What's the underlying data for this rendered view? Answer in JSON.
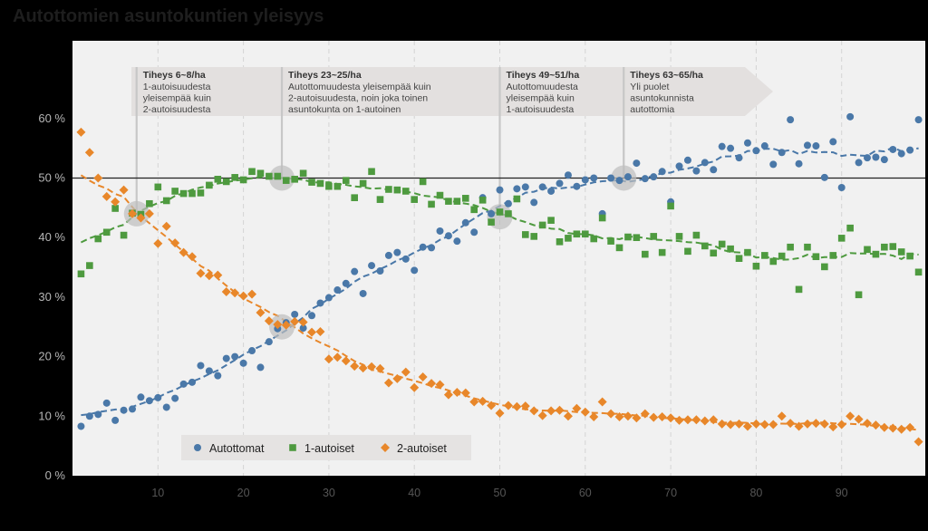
{
  "chart_data": {
    "type": "scatter",
    "title": "Autottomien asuntokuntien yleisyys",
    "xlim": [
      0,
      100
    ],
    "ylim": [
      0,
      70
    ],
    "x_ticks": [
      10,
      20,
      30,
      40,
      50,
      60,
      70,
      80,
      90
    ],
    "y_ticks": [
      {
        "value": 0,
        "label": "0 %"
      },
      {
        "value": 10,
        "label": "10 %"
      },
      {
        "value": 20,
        "label": "20 %"
      },
      {
        "value": 30,
        "label": "30 %"
      },
      {
        "value": 40,
        "label": "40 %"
      },
      {
        "value": 50,
        "label": "50 %"
      },
      {
        "value": 60,
        "label": "60 %"
      }
    ],
    "reference_line": 50,
    "legend_position": "bottom-left",
    "annotations": [
      {
        "x": 7.5,
        "title": "Tiheys 6~8/ha",
        "lines": [
          "1-autoisuudesta",
          "yleisempää kuin",
          "2-autoisuudesta"
        ]
      },
      {
        "x": 24.5,
        "title": "Tiheys 23~25/ha",
        "lines": [
          "Autottomuudesta yleisempää kuin",
          "2-autoisuudesta, noin joka toinen",
          "asuntokunta on 1-autoinen"
        ]
      },
      {
        "x": 50,
        "title": "Tiheys 49~51/ha",
        "lines": [
          "Autottomuudesta",
          "yleisempää kuin",
          "1-autoisuudesta"
        ]
      },
      {
        "x": 64.5,
        "title": "Tiheys 63~65/ha",
        "lines": [
          "Yli puolet",
          "asuntokunnista",
          "autottomia"
        ]
      }
    ],
    "highlights": [
      {
        "x": 7.5,
        "y": 44
      },
      {
        "x": 24.5,
        "y": 50
      },
      {
        "x": 24.5,
        "y": 25
      },
      {
        "x": 50,
        "y": 43.5
      },
      {
        "x": 64.5,
        "y": 50
      }
    ],
    "series": [
      {
        "name": "Autottomat",
        "marker": "circle",
        "color": "#4a78a8",
        "x": [
          1,
          2,
          3,
          4,
          5,
          6,
          7,
          8,
          9,
          10,
          11,
          12,
          13,
          14,
          15,
          16,
          17,
          18,
          19,
          20,
          21,
          22,
          23,
          24,
          25,
          26,
          27,
          28,
          29,
          30,
          31,
          32,
          33,
          34,
          35,
          36,
          37,
          38,
          39,
          40,
          41,
          42,
          43,
          44,
          45,
          46,
          47,
          48,
          49,
          50,
          51,
          52,
          53,
          54,
          55,
          56,
          57,
          58,
          59,
          60,
          61,
          62,
          63,
          64,
          65,
          66,
          67,
          68,
          69,
          70,
          71,
          72,
          73,
          74,
          75,
          76,
          77,
          78,
          79,
          80,
          81,
          82,
          83,
          84,
          85,
          86,
          87,
          88,
          89,
          90,
          91,
          92,
          93,
          94,
          95,
          96,
          97,
          98,
          99
        ],
        "y": [
          8.3,
          10.0,
          10.3,
          12.2,
          9.3,
          11.0,
          11.2,
          13.2,
          12.6,
          13.1,
          11.5,
          13.0,
          15.4,
          15.7,
          18.5,
          17.6,
          16.8,
          19.7,
          20.0,
          18.9,
          21.0,
          18.2,
          22.5,
          24.7,
          25.7,
          27.1,
          24.8,
          26.9,
          29.0,
          29.9,
          31.2,
          32.3,
          34.3,
          30.6,
          35.3,
          34.4,
          37.0,
          37.5,
          36.4,
          34.5,
          38.4,
          38.3,
          41.1,
          40.3,
          39.4,
          42.5,
          40.9,
          46.7,
          44.0,
          48.0,
          45.7,
          48.2,
          48.5,
          45.9,
          48.5,
          47.8,
          49.1,
          50.5,
          48.6,
          49.7,
          50.0,
          44.0,
          50.0,
          49.6,
          50.2,
          52.5,
          49.9,
          50.2,
          51.1,
          46.0,
          52.0,
          53.0,
          51.2,
          52.6,
          51.4,
          55.3,
          55.0,
          53.4,
          55.9,
          54.6,
          55.4,
          52.3,
          54.3,
          59.8,
          52.4,
          55.5,
          55.4,
          50.1,
          56.1,
          48.4,
          60.3,
          52.6,
          53.4,
          53.5,
          53.1,
          54.8,
          54.1,
          54.7,
          59.8
        ]
      },
      {
        "name": "1-autoiset",
        "marker": "square",
        "color": "#4e9a3f",
        "x": [
          1,
          2,
          3,
          4,
          5,
          6,
          7,
          8,
          9,
          10,
          11,
          12,
          13,
          14,
          15,
          16,
          17,
          18,
          19,
          20,
          21,
          22,
          23,
          24,
          25,
          26,
          27,
          28,
          29,
          30,
          31,
          32,
          33,
          34,
          35,
          36,
          37,
          38,
          39,
          40,
          41,
          42,
          43,
          44,
          45,
          46,
          47,
          48,
          49,
          50,
          51,
          52,
          53,
          54,
          55,
          56,
          57,
          58,
          59,
          60,
          61,
          62,
          63,
          64,
          65,
          66,
          67,
          68,
          69,
          70,
          71,
          72,
          73,
          74,
          75,
          76,
          77,
          78,
          79,
          80,
          81,
          82,
          83,
          84,
          85,
          86,
          87,
          88,
          89,
          90,
          91,
          92,
          93,
          94,
          95,
          96,
          97,
          98,
          99
        ],
        "y": [
          33.9,
          35.3,
          39.8,
          40.9,
          44.9,
          40.4,
          44.1,
          43.9,
          45.7,
          48.5,
          46.2,
          47.8,
          47.4,
          47.4,
          47.5,
          48.8,
          49.8,
          49.4,
          50.1,
          49.7,
          51.1,
          50.8,
          50.3,
          50.3,
          49.6,
          49.8,
          50.8,
          49.3,
          49.1,
          48.6,
          48.6,
          49.6,
          46.7,
          49.1,
          51.1,
          46.4,
          48.1,
          48.0,
          47.8,
          46.4,
          49.4,
          45.6,
          47.1,
          46.1,
          46.1,
          46.6,
          44.7,
          46.3,
          42.6,
          44.3,
          44.0,
          46.5,
          40.5,
          40.2,
          42.1,
          42.9,
          39.3,
          39.9,
          40.6,
          40.6,
          39.8,
          43.3,
          39.4,
          38.3,
          40.1,
          40.0,
          37.2,
          40.2,
          37.5,
          45.3,
          40.2,
          37.7,
          40.4,
          38.6,
          37.4,
          38.9,
          38.1,
          36.5,
          37.5,
          35.2,
          37.0,
          36.0,
          36.9,
          38.4,
          31.3,
          38.4,
          36.8,
          35.1,
          37.0,
          39.9,
          41.6,
          30.4,
          38.0,
          37.2,
          38.4,
          38.5,
          37.6,
          36.9,
          34.2
        ]
      },
      {
        "name": "2-autoiset",
        "marker": "diamond",
        "color": "#e8872a",
        "x": [
          1,
          2,
          3,
          4,
          5,
          6,
          7,
          8,
          9,
          10,
          11,
          12,
          13,
          14,
          15,
          16,
          17,
          18,
          19,
          20,
          21,
          22,
          23,
          24,
          25,
          26,
          27,
          28,
          29,
          30,
          31,
          32,
          33,
          34,
          35,
          36,
          37,
          38,
          39,
          40,
          41,
          42,
          43,
          44,
          45,
          46,
          47,
          48,
          49,
          50,
          51,
          52,
          53,
          54,
          55,
          56,
          57,
          58,
          59,
          60,
          61,
          62,
          63,
          64,
          65,
          66,
          67,
          68,
          69,
          70,
          71,
          72,
          73,
          74,
          75,
          76,
          77,
          78,
          79,
          80,
          81,
          82,
          83,
          84,
          85,
          86,
          87,
          88,
          89,
          90,
          91,
          92,
          93,
          94,
          95,
          96,
          97,
          98,
          99
        ],
        "y": [
          57.7,
          54.3,
          50.0,
          46.9,
          46.0,
          48.0,
          44.0,
          43.3,
          44.0,
          39.0,
          41.9,
          39.1,
          37.5,
          36.8,
          34.0,
          33.6,
          33.7,
          30.9,
          30.7,
          30.2,
          30.5,
          27.4,
          26.0,
          25.4,
          25.3,
          25.9,
          25.8,
          24.1,
          24.2,
          19.6,
          19.9,
          19.3,
          18.4,
          18.1,
          18.3,
          18.0,
          15.6,
          16.3,
          17.4,
          14.8,
          16.6,
          15.5,
          15.3,
          13.6,
          14.0,
          13.9,
          12.4,
          12.5,
          11.8,
          10.5,
          11.8,
          11.6,
          11.7,
          10.9,
          10.1,
          10.9,
          11.0,
          10.0,
          11.3,
          10.7,
          9.9,
          12.4,
          10.4,
          9.9,
          10.0,
          9.7,
          10.4,
          9.8,
          9.9,
          9.7,
          9.3,
          9.4,
          9.4,
          9.2,
          9.4,
          8.7,
          8.6,
          8.7,
          8.3,
          8.7,
          8.6,
          8.6,
          10.0,
          8.8,
          8.3,
          8.7,
          8.8,
          8.7,
          8.2,
          8.6,
          10.0,
          9.5,
          8.8,
          8.5,
          8.1,
          8.0,
          7.8,
          8.1,
          5.7
        ]
      }
    ]
  }
}
